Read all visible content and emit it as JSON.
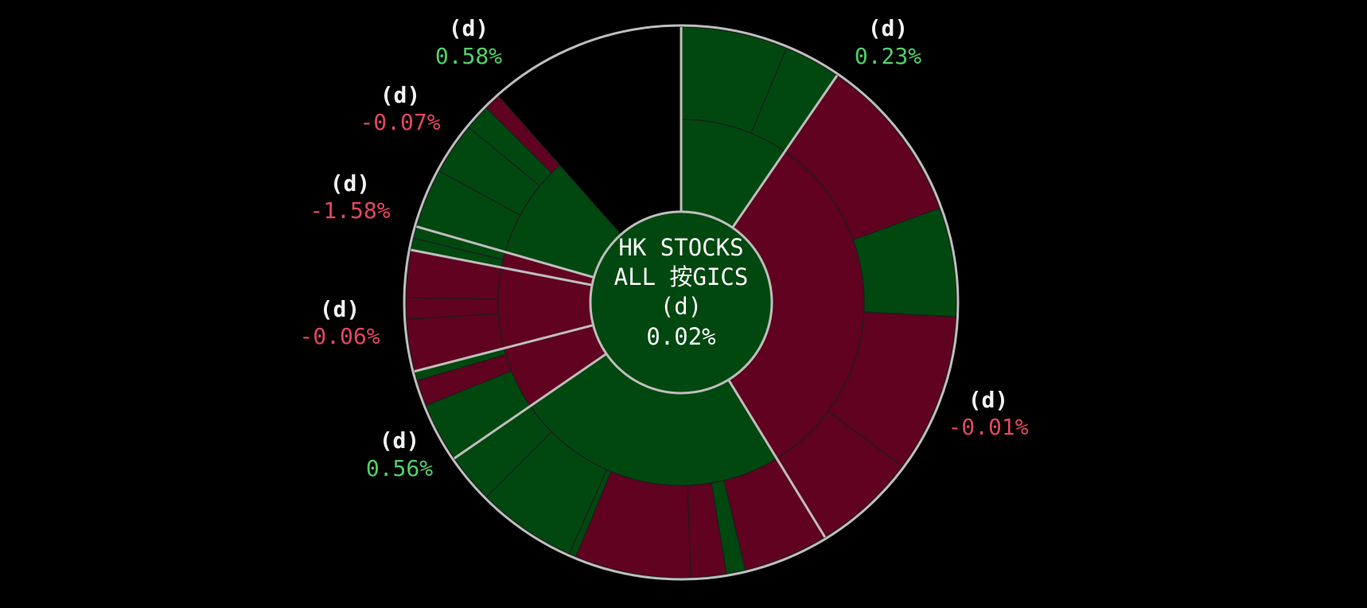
{
  "colors": {
    "background": "#000000",
    "positive": "#00480f",
    "negative": "#600220",
    "positive_text": "#4fd06a",
    "negative_text": "#e2475e",
    "separator": "#bdbdbd",
    "inner_line": "#1d1d1d"
  },
  "chart_data": {
    "type": "sunburst",
    "center": {
      "title_line1": "HK STOCKS",
      "title_line2": "ALL 按GICS",
      "name": "(d)",
      "change": "0.02%",
      "direction": "up"
    },
    "sectors": [
      {
        "name": "(d)",
        "change": "0.23%",
        "direction": "up",
        "segments": [
          {
            "span": 22.5,
            "direction": "up"
          },
          {
            "span": 12.0,
            "direction": "up"
          }
        ]
      },
      {
        "name": "(d)",
        "change": "-0.01%",
        "direction": "down",
        "segments": [
          {
            "span": 35.5,
            "direction": "down"
          },
          {
            "span": 23.0,
            "direction": "up"
          },
          {
            "span": 33.5,
            "direction": "down"
          },
          {
            "span": 22.0,
            "direction": "down"
          }
        ]
      },
      {
        "name": "(d)",
        "change": "0.56%",
        "direction": "up",
        "segments": [
          {
            "span": 18.0,
            "direction": "down"
          },
          {
            "span": 4.0,
            "direction": "up"
          },
          {
            "span": 7.5,
            "direction": "down"
          },
          {
            "span": 24.5,
            "direction": "down"
          },
          {
            "span": 1.5,
            "direction": "up"
          },
          {
            "span": 21.0,
            "direction": "up"
          },
          {
            "span": 10.5,
            "direction": "up"
          }
        ]
      },
      {
        "name": "(d)",
        "change": "-0.06%",
        "direction": "down",
        "segments": [
          {
            "span": 12.5,
            "direction": "up"
          },
          {
            "span": 5.5,
            "direction": "down"
          },
          {
            "span": 2.0,
            "direction": "up"
          }
        ]
      },
      {
        "name": "(d)",
        "change": "-1.58%",
        "direction": "down",
        "segments": [
          {
            "span": 11.0,
            "direction": "down"
          },
          {
            "span": 4.5,
            "direction": "down"
          },
          {
            "span": 10.0,
            "direction": "down"
          }
        ]
      },
      {
        "name": "(d)",
        "change": "-0.07%",
        "direction": "down",
        "segments": [
          {
            "span": 2.5,
            "direction": "up"
          },
          {
            "span": 2.5,
            "direction": "up"
          }
        ]
      },
      {
        "name": "(d)",
        "change": "0.58%",
        "direction": "up",
        "segments": [
          {
            "span": 12.5,
            "direction": "up"
          },
          {
            "span": 11.0,
            "direction": "up"
          },
          {
            "span": 5.5,
            "direction": "up"
          },
          {
            "span": 3.5,
            "direction": "down"
          }
        ]
      }
    ]
  }
}
